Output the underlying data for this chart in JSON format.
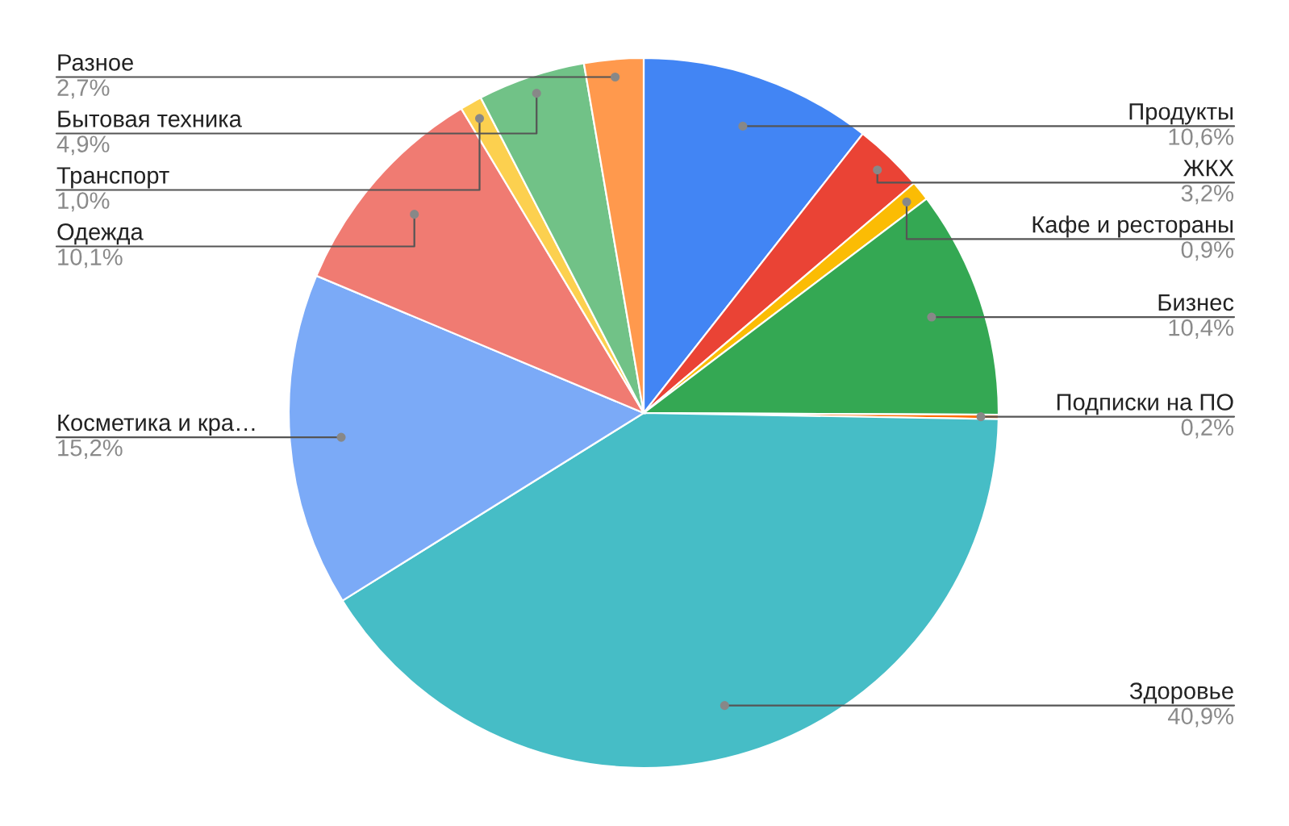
{
  "chart_data": {
    "type": "pie",
    "categories": [
      "Продукты",
      "ЖКХ",
      "Кафе и рестораны",
      "Бизнес",
      "Подписки на ПО",
      "Здоровье",
      "Косметика и кра…",
      "Одежда",
      "Транспорт",
      "Бытовая техника",
      "Разное"
    ],
    "values": [
      10.6,
      3.2,
      0.9,
      10.4,
      0.2,
      40.9,
      15.2,
      10.1,
      1.0,
      4.9,
      2.7
    ],
    "value_labels": [
      "10,6%",
      "3,2%",
      "0,9%",
      "10,4%",
      "0,2%",
      "40,9%",
      "15,2%",
      "10,1%",
      "1,0%",
      "4,9%",
      "2,7%"
    ],
    "colors": [
      "#4285f4",
      "#ea4335",
      "#fbbc04",
      "#34a853",
      "#ff6d01",
      "#46bdc6",
      "#7baaf7",
      "#f07b72",
      "#fcd04f",
      "#71c287",
      "#ff994d"
    ],
    "legend": false
  }
}
